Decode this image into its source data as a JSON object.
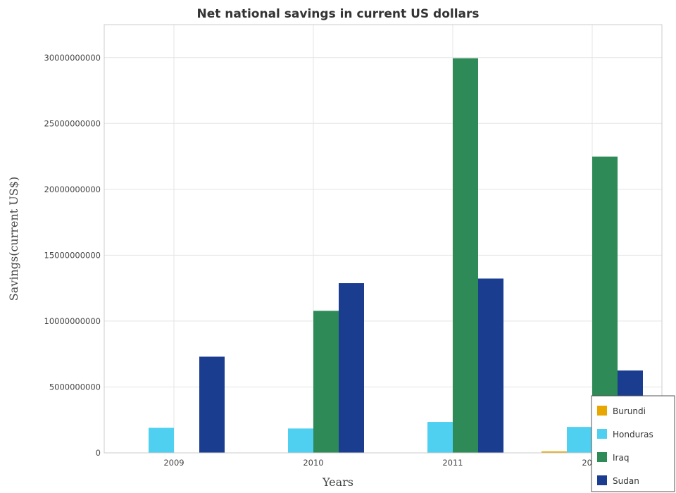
{
  "chart_data": {
    "type": "bar",
    "title": "Net national savings in current US dollars",
    "xlabel": "Years",
    "ylabel": "Savings(current US$)",
    "categories": [
      "2009",
      "2010",
      "2011",
      "2012"
    ],
    "ylim": [
      0,
      32500000000
    ],
    "yticks": [
      0,
      5000000000,
      10000000000,
      15000000000,
      20000000000,
      25000000000,
      30000000000
    ],
    "ytick_labels": [
      "0",
      "5000000000",
      "10000000000",
      "15000000000",
      "20000000000",
      "25000000000",
      "30000000000"
    ],
    "grid": true,
    "legend_position": "bottom-right",
    "series": [
      {
        "name": "Burundi",
        "color": "#e8a600",
        "values": [
          0,
          0,
          0,
          110000000
        ]
      },
      {
        "name": "Honduras",
        "color": "#4fd0f0",
        "values": [
          1900000000,
          1850000000,
          2350000000,
          1970000000
        ]
      },
      {
        "name": "Iraq",
        "color": "#2e8b57",
        "values": [
          0,
          10780000000,
          29950000000,
          22480000000
        ]
      },
      {
        "name": "Sudan",
        "color": "#1a3d8f",
        "values": [
          7300000000,
          12880000000,
          13230000000,
          6250000000
        ]
      }
    ]
  }
}
